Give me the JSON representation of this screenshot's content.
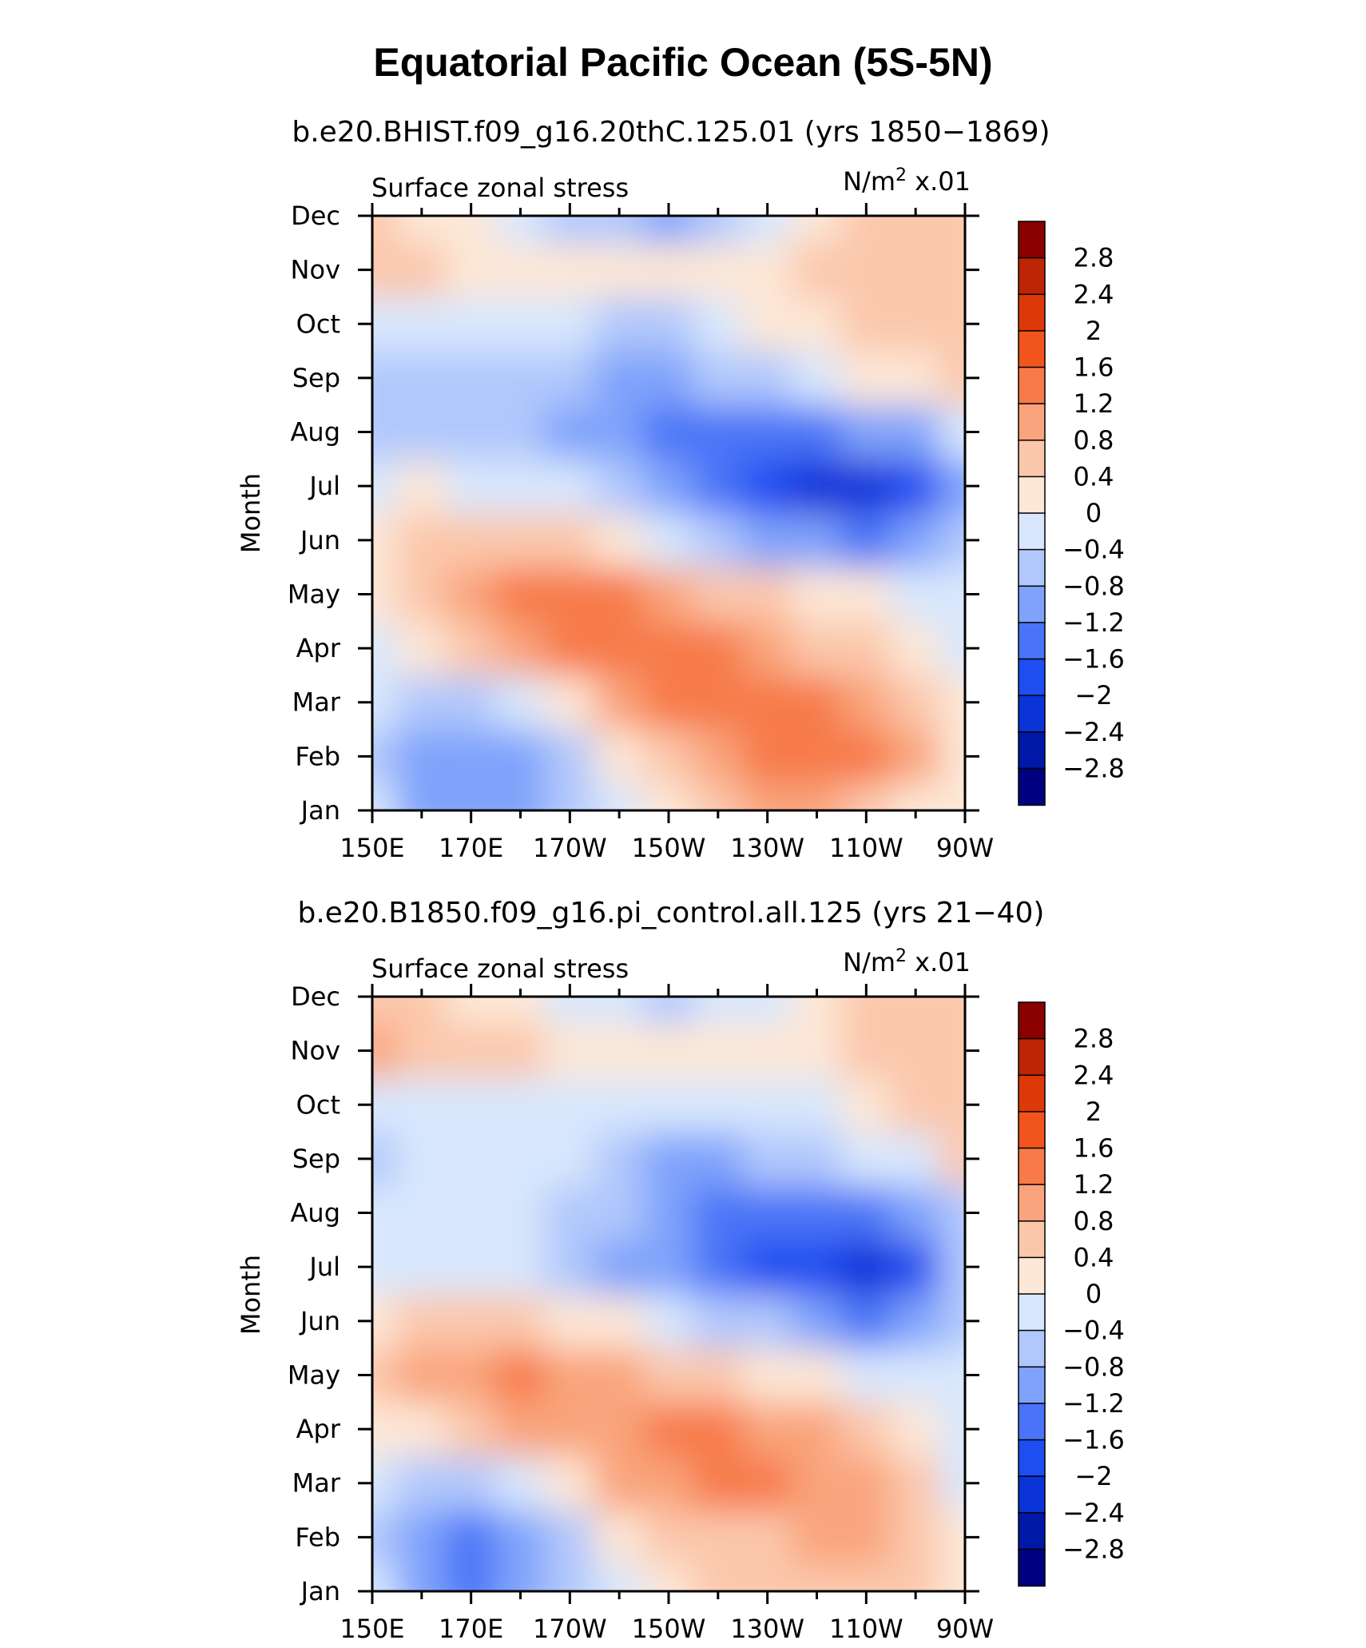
{
  "figure": {
    "title": "Equatorial Pacific Ocean (5S-5N)"
  },
  "colorbar": {
    "levels": [
      -2.8,
      -2.4,
      -2,
      -1.6,
      -1.2,
      -0.8,
      -0.4,
      0,
      0.4,
      0.8,
      1.2,
      1.6,
      2,
      2.4,
      2.8
    ],
    "level_labels": [
      "2.8",
      "2.4",
      "2",
      "1.6",
      "1.2",
      "0.8",
      "0.4",
      "0",
      "−0.4",
      "−0.8",
      "−1.2",
      "−1.6",
      "−2",
      "−2.4",
      "−2.8"
    ],
    "colors": [
      "#000080",
      "#0018a8",
      "#0a33d8",
      "#1e4ef0",
      "#4a74f7",
      "#7fa3fb",
      "#b1c8fc",
      "#d8e7fd",
      "#fde7d6",
      "#fbc7ab",
      "#f9a47c",
      "#f77a48",
      "#f2541e",
      "#de3909",
      "#bd2505",
      "#8b0000"
    ]
  },
  "chart_data": [
    {
      "type": "heatmap",
      "subtitle": "b.e20.BHIST.f09_g16.20thC.125.01 (yrs 1850−1869)",
      "left_label": "Surface zonal stress",
      "right_label": "N/m",
      "units_exp": "2",
      "units_scale": " x.01",
      "ylabel": "Month",
      "xlabel": "",
      "x_ticks": [
        "150E",
        "170E",
        "170W",
        "150W",
        "130W",
        "110W",
        "90W"
      ],
      "x_values": [
        150,
        170,
        190,
        210,
        230,
        250,
        270
      ],
      "y_ticks": [
        "Jan",
        "Feb",
        "Mar",
        "Apr",
        "May",
        "Jun",
        "Jul",
        "Aug",
        "Sep",
        "Oct",
        "Nov",
        "Dec"
      ],
      "z": [
        [
          -0.3,
          -0.9,
          -1.2,
          -1.0,
          -0.6,
          -0.2,
          0.3,
          0.7,
          0.9,
          0.9,
          0.5,
          0.2,
          0.0
        ],
        [
          -0.5,
          -1.1,
          -1.2,
          -1.0,
          -0.5,
          0.1,
          0.5,
          0.9,
          1.2,
          1.3,
          1.4,
          1.0,
          0.1
        ],
        [
          -0.2,
          -0.6,
          -0.6,
          -0.3,
          0.3,
          0.8,
          1.3,
          1.3,
          1.4,
          1.3,
          1.0,
          0.6,
          0.0
        ],
        [
          -0.1,
          0.2,
          0.5,
          0.9,
          1.3,
          1.4,
          1.3,
          1.2,
          0.9,
          0.6,
          0.4,
          0.1,
          -0.1
        ],
        [
          0.2,
          0.5,
          0.9,
          1.2,
          1.3,
          1.2,
          1.0,
          0.7,
          0.5,
          0.2,
          0.0,
          -0.3,
          -0.3
        ],
        [
          0.1,
          0.4,
          0.6,
          0.6,
          0.4,
          0.1,
          -0.2,
          -0.6,
          -0.9,
          -1.2,
          -1.3,
          -1.2,
          -0.7
        ],
        [
          -0.1,
          0.0,
          -0.1,
          -0.2,
          -0.4,
          -0.7,
          -1.0,
          -1.3,
          -1.8,
          -2.2,
          -2.2,
          -1.7,
          -0.9
        ],
        [
          -0.5,
          -0.6,
          -0.7,
          -0.8,
          -1.0,
          -1.1,
          -1.3,
          -1.3,
          -1.3,
          -1.4,
          -1.2,
          -0.9,
          -0.4
        ],
        [
          -0.8,
          -0.6,
          -0.6,
          -0.6,
          -0.8,
          -0.9,
          -0.9,
          -0.8,
          -0.5,
          -0.3,
          0.0,
          0.3,
          0.6
        ],
        [
          -0.2,
          -0.3,
          -0.2,
          -0.1,
          -0.3,
          -0.5,
          -0.5,
          -0.3,
          0.0,
          0.2,
          0.5,
          0.6,
          0.6
        ],
        [
          0.6,
          0.6,
          0.3,
          0.1,
          0.0,
          0.1,
          0.2,
          0.2,
          0.3,
          0.4,
          0.5,
          0.6,
          0.6
        ],
        [
          0.5,
          0.3,
          0.0,
          -0.3,
          -0.5,
          -0.7,
          -0.9,
          -0.8,
          -0.4,
          0.2,
          0.5,
          0.6,
          0.6
        ]
      ]
    },
    {
      "type": "heatmap",
      "subtitle": "b.e20.B1850.f09_g16.pi_control.all.125 (yrs 21−40)",
      "left_label": "Surface zonal stress",
      "right_label": "N/m",
      "units_exp": "2",
      "units_scale": " x.01",
      "ylabel": "Month",
      "xlabel": "",
      "x_ticks": [
        "150E",
        "170E",
        "170W",
        "150W",
        "130W",
        "110W",
        "90W"
      ],
      "x_values": [
        150,
        170,
        190,
        210,
        230,
        250,
        270
      ],
      "y_ticks": [
        "Jan",
        "Feb",
        "Mar",
        "Apr",
        "May",
        "Jun",
        "Jul",
        "Aug",
        "Sep",
        "Oct",
        "Nov",
        "Dec"
      ],
      "z": [
        [
          -0.3,
          -1.0,
          -1.4,
          -1.2,
          -0.7,
          -0.4,
          0.1,
          0.4,
          0.5,
          0.6,
          0.6,
          0.5,
          0.0
        ],
        [
          -0.5,
          -1.0,
          -1.3,
          -1.0,
          -0.5,
          0.0,
          0.4,
          0.6,
          0.7,
          0.8,
          0.8,
          0.5,
          0.0
        ],
        [
          -0.3,
          -0.6,
          -0.7,
          -0.2,
          0.3,
          0.8,
          1.0,
          1.3,
          1.3,
          1.0,
          0.8,
          0.4,
          -0.1
        ],
        [
          0.0,
          0.2,
          0.5,
          0.8,
          1.0,
          1.0,
          1.3,
          1.3,
          1.0,
          0.9,
          0.6,
          0.2,
          -0.2
        ],
        [
          0.5,
          0.9,
          1.1,
          1.3,
          1.1,
          0.8,
          0.6,
          0.4,
          0.3,
          0.1,
          -0.1,
          -0.3,
          -0.3
        ],
        [
          0.1,
          0.4,
          0.6,
          0.5,
          0.3,
          0.1,
          -0.2,
          -0.5,
          -0.8,
          -1.1,
          -1.3,
          -1.2,
          -0.5
        ],
        [
          -0.1,
          -0.1,
          -0.2,
          -0.4,
          -0.6,
          -0.9,
          -1.0,
          -1.3,
          -1.7,
          -2.0,
          -2.2,
          -1.8,
          -0.7
        ],
        [
          -0.3,
          -0.3,
          -0.2,
          -0.3,
          -0.5,
          -0.8,
          -1.0,
          -1.3,
          -1.3,
          -1.4,
          -1.3,
          -1.0,
          -0.5
        ],
        [
          -0.7,
          -0.4,
          -0.2,
          -0.2,
          -0.3,
          -0.6,
          -0.9,
          -1.0,
          -0.8,
          -0.6,
          -0.4,
          -0.2,
          0.5
        ],
        [
          -0.2,
          -0.2,
          -0.2,
          -0.1,
          -0.2,
          -0.3,
          -0.4,
          -0.4,
          -0.3,
          -0.1,
          0.2,
          0.4,
          0.6
        ],
        [
          0.8,
          0.6,
          0.5,
          0.5,
          0.3,
          0.2,
          0.1,
          0.1,
          0.2,
          0.3,
          0.4,
          0.6,
          0.6
        ],
        [
          0.6,
          0.4,
          0.2,
          0.0,
          -0.2,
          -0.4,
          -0.5,
          -0.4,
          -0.1,
          0.2,
          0.4,
          0.6,
          0.5
        ]
      ]
    }
  ]
}
